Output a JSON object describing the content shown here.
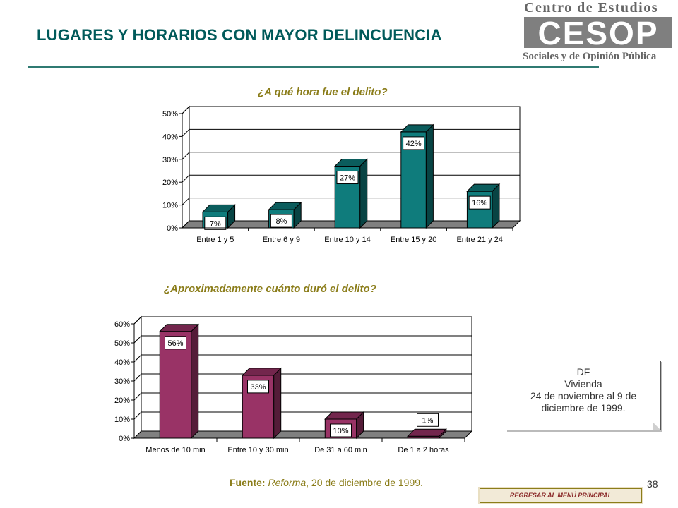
{
  "header": {
    "title": "LUGARES Y HORARIOS CON MAYOR DELINCUENCIA",
    "logo_top": "Centro de Estudios",
    "logo_mark": "CESOP",
    "logo_bottom": "Sociales y de Opinión Pública"
  },
  "chart_data": [
    {
      "type": "bar",
      "title": "¿A qué hora fue el delito?",
      "categories": [
        "Entre 1 y 5",
        "Entre 6 y 9",
        "Entre 10 y 14",
        "Entre 15 y 20",
        "Entre 21 y 24"
      ],
      "values": [
        7,
        8,
        27,
        42,
        16
      ],
      "data_labels": [
        "7%",
        "8%",
        "27%",
        "42%",
        "16%"
      ],
      "ylim": [
        0,
        50
      ],
      "yticks": [
        "0%",
        "10%",
        "20%",
        "30%",
        "40%",
        "50%"
      ],
      "grid": true,
      "bar_style": "3d",
      "color": "#0f7c7c",
      "xlabel": "",
      "ylabel": ""
    },
    {
      "type": "bar",
      "title": "¿Aproximadamente cuánto duró el delito?",
      "categories": [
        "Menos de 10 min",
        "Entre 10 y 30 min",
        "De 31 a 60 min",
        "De 1 a 2 horas"
      ],
      "values": [
        56,
        33,
        10,
        1
      ],
      "data_labels": [
        "56%",
        "33%",
        "10%",
        "1%"
      ],
      "ylim": [
        0,
        60
      ],
      "yticks": [
        "0%",
        "10%",
        "20%",
        "30%",
        "40%",
        "50%",
        "60%"
      ],
      "grid": true,
      "bar_style": "3d",
      "color": "#993366",
      "xlabel": "",
      "ylabel": ""
    }
  ],
  "note": {
    "lines": [
      "DF",
      "Vivienda",
      "24 de noviembre al 9 de",
      "diciembre de 1999."
    ]
  },
  "source": {
    "label": "Fuente:",
    "publication": "Reforma",
    "date": ", 20 de diciembre de 1999."
  },
  "page_number": "38",
  "back_button": "REGRESAR AL MENÚ PRINCIPAL"
}
